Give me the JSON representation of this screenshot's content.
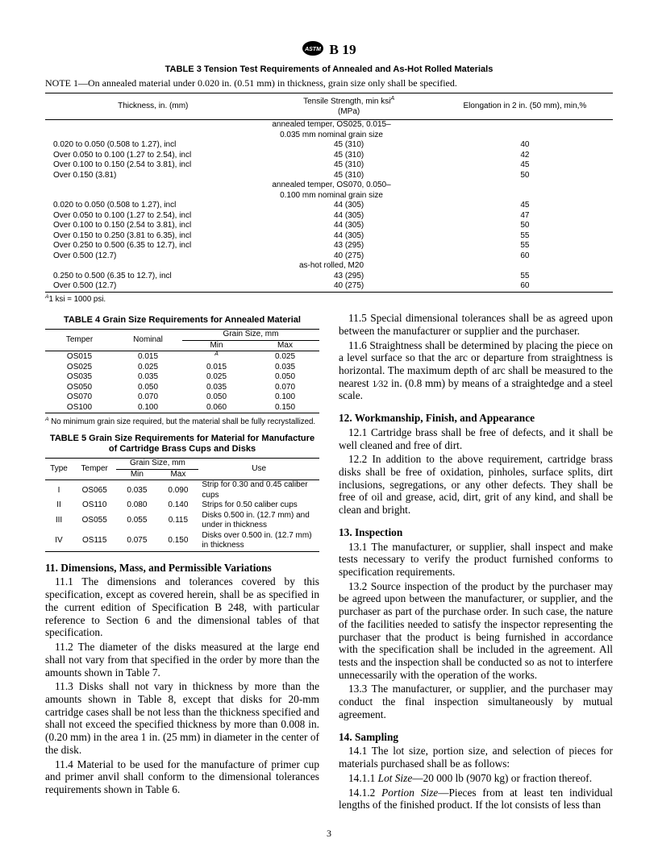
{
  "header": {
    "docnum": "B 19"
  },
  "table3": {
    "title": "TABLE 3  Tension Test Requirements of Annealed and As-Hot Rolled Materials",
    "note": "NOTE  1—On annealed material under 0.020 in. (0.51 mm) in thickness, grain size only shall be specified.",
    "cols": [
      "Thickness, in. (mm)",
      "Tensile Strength, min ksiᴬ\n(MPa)",
      "Elongation in 2 in. (50 mm), min,%"
    ],
    "sections": [
      {
        "label": "annealed temper, OS025, 0.015–\n0.035 mm nominal grain size",
        "rows": [
          [
            "0.020 to 0.050 (0.508 to 1.27), incl",
            "45 (310)",
            "40"
          ],
          [
            "Over 0.050 to 0.100 (1.27 to 2.54), incl",
            "45 (310)",
            "42"
          ],
          [
            "Over 0.100 to 0.150 (2.54 to 3.81), incl",
            "45 (310)",
            "45"
          ],
          [
            "Over 0.150 (3.81)",
            "45 (310)",
            "50"
          ]
        ]
      },
      {
        "label": "annealed temper, OS070, 0.050–\n0.100 mm nominal grain size",
        "rows": [
          [
            "0.020 to 0.050 (0.508 to 1.27), incl",
            "44 (305)",
            "45"
          ],
          [
            "Over 0.050 to 0.100 (1.27 to 2.54), incl",
            "44 (305)",
            "47"
          ],
          [
            "Over 0.100 to 0.150 (2.54 to 3.81), incl",
            "44 (305)",
            "50"
          ],
          [
            "Over 0.150 to 0.250 (3.81 to 6.35), incl",
            "44 (305)",
            "55"
          ],
          [
            "Over 0.250 to 0.500 (6.35 to 12.7), incl",
            "43 (295)",
            "55"
          ],
          [
            "Over 0.500 (12.7)",
            "40 (275)",
            "60"
          ]
        ]
      },
      {
        "label": "as-hot rolled, M20",
        "rows": [
          [
            "0.250 to 0.500 (6.35 to 12.7), incl",
            "43 (295)",
            "55"
          ],
          [
            "Over 0.500 (12.7)",
            "40 (275)",
            "60"
          ]
        ]
      }
    ],
    "footnote": "ᴬ1 ksi = 1000 psi."
  },
  "table4": {
    "title": "TABLE 4  Grain Size Requirements for Annealed Material",
    "cols": [
      "Temper",
      "Nominal",
      "Grain Size, mm",
      "Min",
      "Max"
    ],
    "rows": [
      [
        "OS015",
        "0.015",
        "ᴬ",
        "0.025"
      ],
      [
        "OS025",
        "0.025",
        "0.015",
        "0.035"
      ],
      [
        "OS035",
        "0.035",
        "0.025",
        "0.050"
      ],
      [
        "OS050",
        "0.050",
        "0.035",
        "0.070"
      ],
      [
        "OS070",
        "0.070",
        "0.050",
        "0.100"
      ],
      [
        "OS100",
        "0.100",
        "0.060",
        "0.150"
      ]
    ],
    "footnote": "ᴬ No minimum grain size required, but the material shall be fully recrystallized."
  },
  "table5": {
    "title": "TABLE 5  Grain Size Requirements for Material for Manufacture of Cartridge Brass Cups and Disks",
    "cols": [
      "Type",
      "Temper",
      "Grain Size, mm",
      "Min",
      "Max",
      "Use"
    ],
    "rows": [
      [
        "I",
        "OS065",
        "0.035",
        "0.090",
        "Strip for 0.30 and 0.45 caliber cups"
      ],
      [
        "II",
        "OS110",
        "0.080",
        "0.140",
        "Strips for 0.50 caliber cups"
      ],
      [
        "III",
        "OS055",
        "0.055",
        "0.115",
        "Disks 0.500 in. (12.7 mm) and under in thickness"
      ],
      [
        "IV",
        "OS115",
        "0.075",
        "0.150",
        "Disks over 0.500 in. (12.7 mm) in thickness"
      ]
    ]
  },
  "sections": {
    "s11": {
      "title": "11.  Dimensions, Mass, and Permissible Variations",
      "p1": "11.1  The dimensions and tolerances covered by this specification, except as covered herein, shall be as specified in the current edition of Specification B 248, with particular reference to Section 6 and the dimensional tables of that specification.",
      "p2": "11.2  The diameter of the disks measured at the large end shall not vary from that specified in the order by more than the amounts shown in Table 7.",
      "p3": "11.3  Disks shall not vary in thickness by more than the amounts shown in Table 8, except that disks for 20-mm cartridge cases shall be not less than the thickness specified and shall not exceed the specified thickness by more than 0.008 in. (0.20 mm) in the area 1 in. (25 mm) in diameter in the center of the disk.",
      "p4": "11.4  Material to be used for the manufacture of primer cup and primer anvil shall conform to the dimensional tolerances requirements shown in Table 6.",
      "p5": "11.5  Special dimensional tolerances shall be as agreed upon between the manufacturer or supplier and the purchaser.",
      "p6": "11.6  Straightness shall be determined by placing the piece on a level surface so that the arc or departure from straightness is horizontal. The maximum depth of arc shall be measured to the nearest 1⁄32 in. (0.8 mm) by means of a straightedge and a steel scale."
    },
    "s12": {
      "title": "12.  Workmanship, Finish, and Appearance",
      "p1": "12.1  Cartridge brass shall be free of defects, and it shall be well cleaned and free of dirt.",
      "p2": "12.2  In addition to the above requirement, cartridge brass disks shall be free of oxidation, pinholes, surface splits, dirt inclusions, segregations, or any other defects. They shall be free of oil and grease, acid, dirt, grit of any kind, and shall be clean and bright."
    },
    "s13": {
      "title": "13.  Inspection",
      "p1": "13.1  The manufacturer, or supplier, shall inspect and make tests necessary to verify the product furnished conforms to specification requirements.",
      "p2": "13.2  Source inspection of the product by the purchaser may be agreed upon between the manufacturer, or supplier, and the purchaser as part of the purchase order. In such case, the nature of the facilities needed to satisfy the inspector representing the purchaser that the product is being furnished in accordance with the specification shall be included in the agreement. All tests and the inspection shall be conducted so as not to interfere unnecessarily with the operation of the works.",
      "p3": "13.3  The manufacturer, or supplier, and the purchaser may conduct the final inspection simultaneously by mutual agreement."
    },
    "s14": {
      "title": "14.  Sampling",
      "p1": "14.1  The lot size, portion size, and selection of pieces for materials purchased shall be as follows:",
      "p1_1": "14.1.1  Lot Size—20 000 lb (9070 kg) or fraction thereof.",
      "p1_2": "14.1.2  Portion Size—Pieces from at least ten individual lengths of the finished product. If the lot consists of less than"
    }
  },
  "page": "3"
}
